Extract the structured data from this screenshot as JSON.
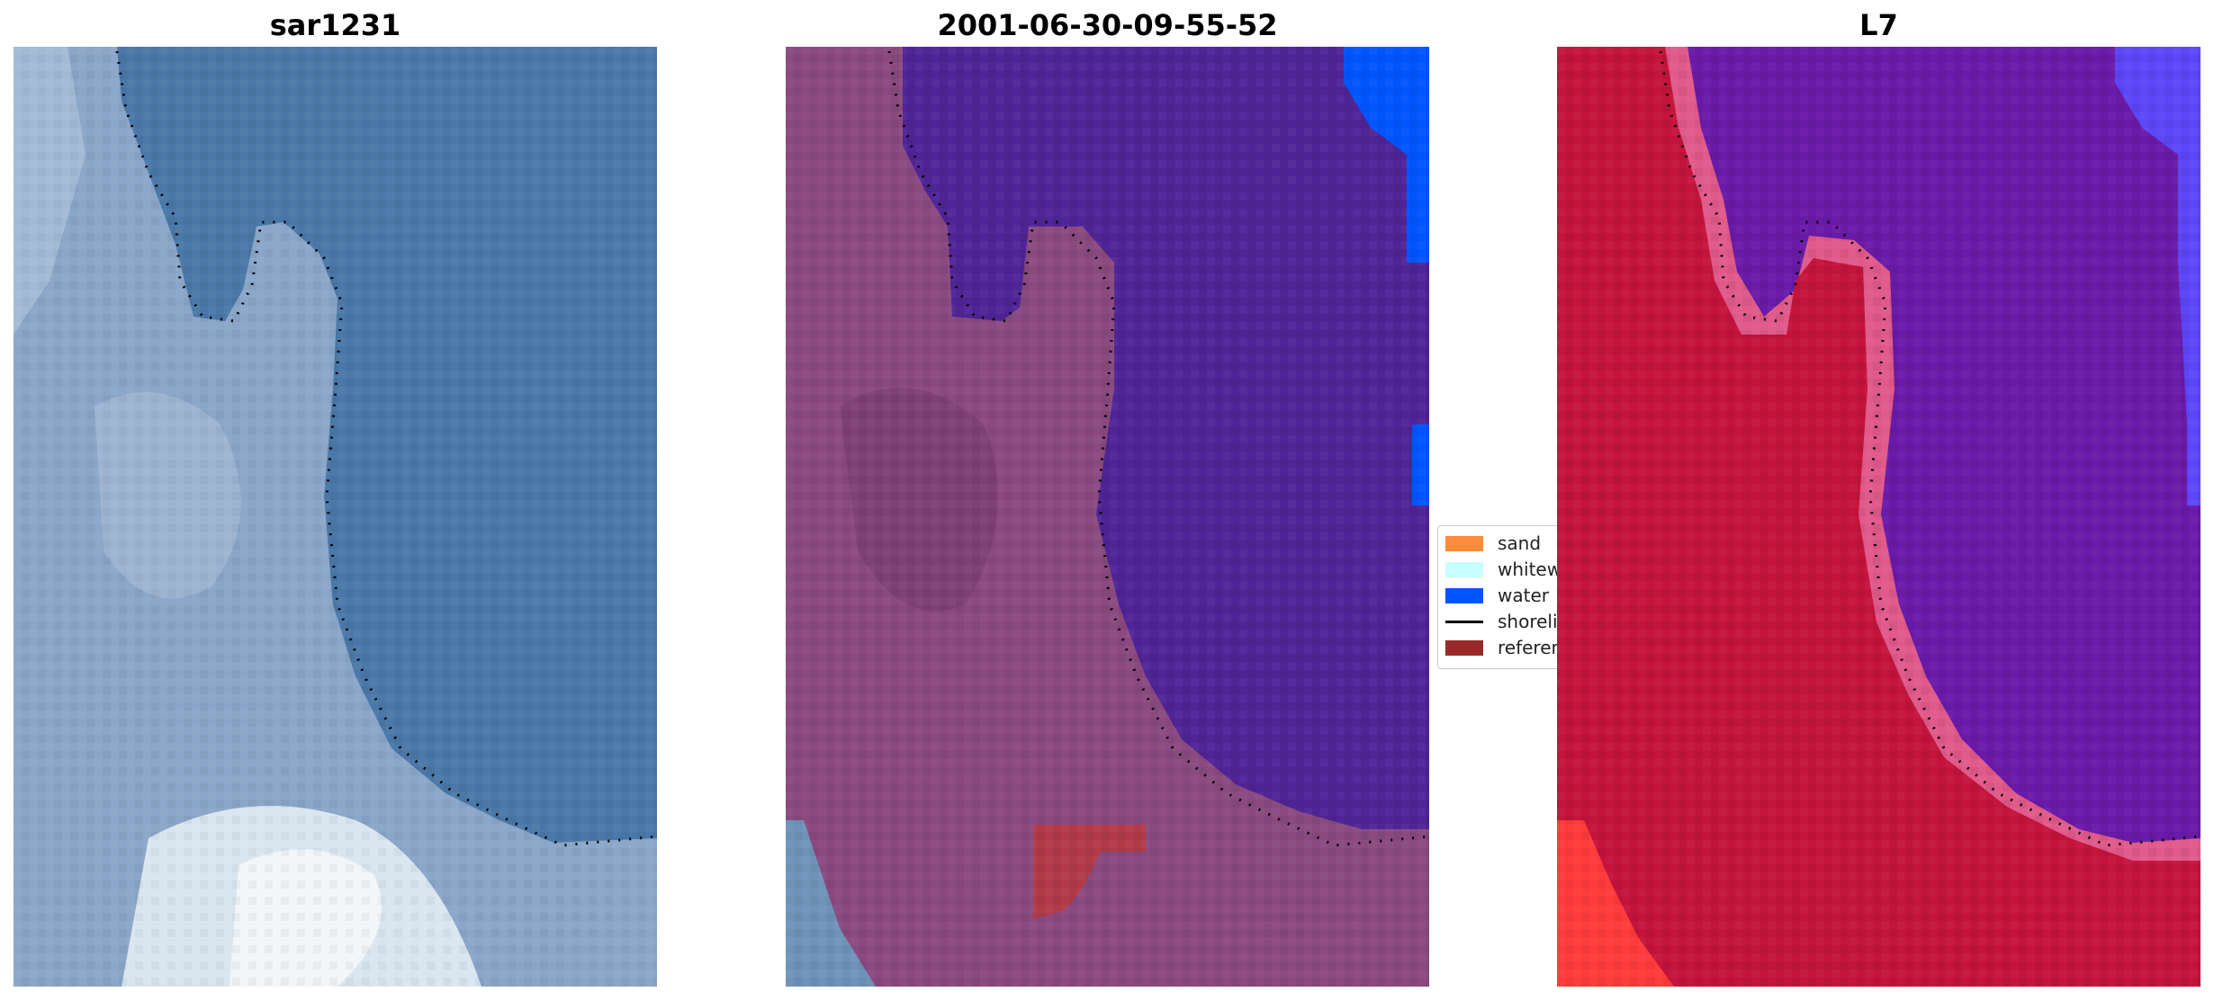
{
  "panels": [
    {
      "title": "sar1231",
      "style": "rgb-satellite"
    },
    {
      "title": "2001-06-30-09-55-52",
      "style": "classified-overlay"
    },
    {
      "title": "L7",
      "style": "index-map"
    }
  ],
  "legend": {
    "items": [
      {
        "label": "sand",
        "type": "patch",
        "color": "#ff8c3a"
      },
      {
        "label": "whitewater",
        "type": "patch",
        "color": "#c8ffff"
      },
      {
        "label": "water",
        "type": "patch",
        "color": "#0055ff"
      },
      {
        "label": "shoreline",
        "type": "line",
        "color": "#000000"
      },
      {
        "label": "reference",
        "type": "patch",
        "color": "#9a2a2a"
      }
    ]
  },
  "colors": {
    "sea_rgb": "#4a78a8",
    "land_rgb": "#8aa6c8",
    "foam_rgb": "#e8f0f4",
    "water_overlay": "#4f2496",
    "land_overlay": "#8a4a80",
    "water_class": "#0055ff",
    "reference_class": "#b23a48",
    "land_index": "#c4143c",
    "water_index": "#6a1aa8",
    "edge_index": "#e05a8a",
    "dots": "#000000"
  }
}
